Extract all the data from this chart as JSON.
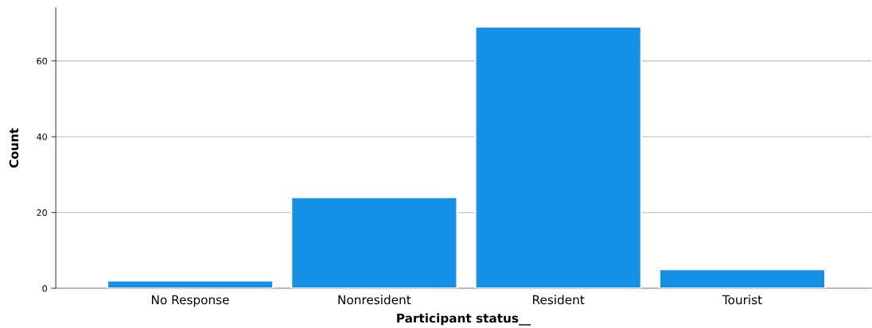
{
  "chart_data": {
    "type": "bar",
    "xlabel": "Participant status__",
    "ylabel": "Count",
    "categories": [
      "No Response",
      "Nonresident",
      "Resident",
      "Tourist"
    ],
    "values": [
      2,
      24,
      69,
      5
    ],
    "color": "#1490e6",
    "ylim": [
      0,
      74
    ],
    "yticks": [
      0,
      20,
      40,
      60
    ],
    "grid": "y"
  }
}
